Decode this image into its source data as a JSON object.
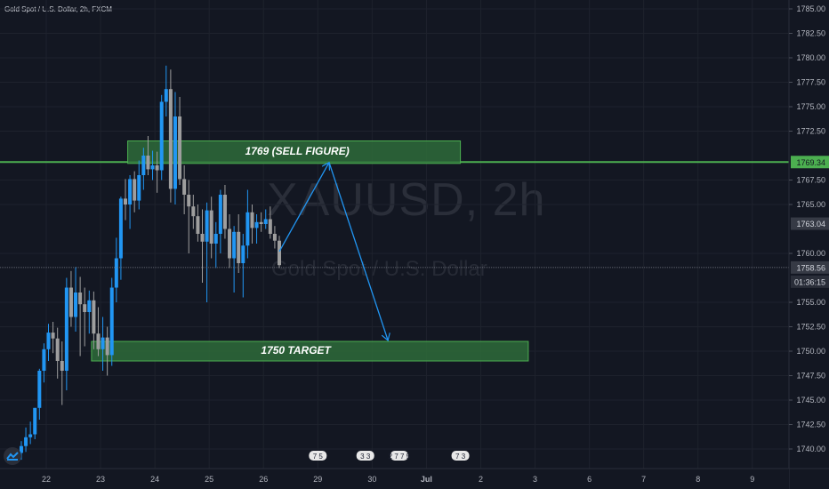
{
  "header": {
    "title": "Gold Spot / U.S. Dollar, 2h, FXCM"
  },
  "watermark": {
    "symbol": "XAUUSD, 2h",
    "description": "Gold Spot / U.S. Dollar"
  },
  "colors": {
    "background": "#131722",
    "up_candle": "#2196f3",
    "down_candle": "#9e9e9e",
    "zone_fill": "#2e6b3a",
    "zone_border": "#4caf50",
    "resistance_line": "#4caf50",
    "arrow": "#2196f3",
    "axis_text": "#b2b5be"
  },
  "chart_data": {
    "type": "candlestick",
    "title": "Gold Spot / U.S. Dollar, 2h, FXCM",
    "y_axis": {
      "position": "right",
      "ticks": [
        "1785.00",
        "1782.50",
        "1780.00",
        "1777.50",
        "1775.00",
        "1772.50",
        "1767.50",
        "1765.00",
        "1760.00",
        "1755.00",
        "1752.50",
        "1750.00",
        "1747.50",
        "1745.00",
        "1742.50",
        "1740.00"
      ],
      "price_labels": [
        {
          "value": 1769.34,
          "text": "1769.34"
        },
        {
          "value": 1763.04,
          "text": "1763.04"
        },
        {
          "value": 1758.56,
          "text": "1758.56"
        }
      ],
      "countdown": "01:36:15"
    },
    "x_axis": {
      "ticks": [
        "22",
        "23",
        "24",
        "25",
        "26",
        "29",
        "30",
        "Jul",
        "2",
        "3",
        "6",
        "7",
        "8",
        "9"
      ]
    },
    "current_price": 1758.56,
    "resistance_line": 1769.34,
    "zones": [
      {
        "label": "1769 (SELL FIGURE)",
        "top": 1771.5,
        "bottom": 1769.2,
        "from": "23 12:00",
        "to": "1 15:00"
      },
      {
        "label": "1750 TARGET",
        "top": 1751.0,
        "bottom": 1749.0,
        "from": "22 20:00",
        "to": "2 21:00"
      }
    ],
    "projection_path": [
      {
        "time": "26 07:00",
        "price": 1760.2
      },
      {
        "time": "29 05:00",
        "price": 1769.3
      },
      {
        "time": "30 07:00",
        "price": 1751.1
      }
    ],
    "event_markers": [
      {
        "time": "29",
        "text": "7 5"
      },
      {
        "time": "29 21:00",
        "text": "3 3"
      },
      {
        "time": "30 12:00",
        "text": "2 7 7 5"
      },
      {
        "time": "1 15:00",
        "text": "7 3"
      }
    ],
    "candles": [
      {
        "t": "21 12:00",
        "o": 1739.6,
        "h": 1740.8,
        "l": 1738.9,
        "c": 1740.3
      },
      {
        "t": "21 14:00",
        "o": 1740.3,
        "h": 1742.2,
        "l": 1739.7,
        "c": 1741.2
      },
      {
        "t": "21 16:00",
        "o": 1741.2,
        "h": 1742.8,
        "l": 1740.5,
        "c": 1741.5
      },
      {
        "t": "21 18:00",
        "o": 1741.5,
        "h": 1744.2,
        "l": 1741.0,
        "c": 1744.2
      },
      {
        "t": "21 20:00",
        "o": 1744.2,
        "h": 1748.2,
        "l": 1743.0,
        "c": 1748.0
      },
      {
        "t": "21 22:00",
        "o": 1748.0,
        "h": 1750.8,
        "l": 1746.8,
        "c": 1750.2
      },
      {
        "t": "22 00:00",
        "o": 1750.2,
        "h": 1752.8,
        "l": 1749.0,
        "c": 1751.9
      },
      {
        "t": "22 02:00",
        "o": 1751.9,
        "h": 1753.0,
        "l": 1749.8,
        "c": 1751.3
      },
      {
        "t": "22 04:00",
        "o": 1751.3,
        "h": 1752.4,
        "l": 1747.2,
        "c": 1749.0
      },
      {
        "t": "22 06:00",
        "o": 1749.0,
        "h": 1751.0,
        "l": 1744.5,
        "c": 1748.0
      },
      {
        "t": "22 08:00",
        "o": 1748.0,
        "h": 1757.5,
        "l": 1746.0,
        "c": 1756.5
      },
      {
        "t": "22 10:00",
        "o": 1756.5,
        "h": 1758.2,
        "l": 1752.5,
        "c": 1753.5
      },
      {
        "t": "22 12:00",
        "o": 1753.5,
        "h": 1758.6,
        "l": 1752.0,
        "c": 1756.0
      },
      {
        "t": "22 14:00",
        "o": 1756.0,
        "h": 1757.6,
        "l": 1749.5,
        "c": 1754.8
      },
      {
        "t": "22 16:00",
        "o": 1754.8,
        "h": 1756.5,
        "l": 1750.5,
        "c": 1754.0
      },
      {
        "t": "22 18:00",
        "o": 1754.0,
        "h": 1756.2,
        "l": 1751.8,
        "c": 1755.2
      },
      {
        "t": "22 20:00",
        "o": 1755.2,
        "h": 1756.1,
        "l": 1750.2,
        "c": 1751.8
      },
      {
        "t": "22 22:00",
        "o": 1751.8,
        "h": 1754.5,
        "l": 1749.5,
        "c": 1750.2
      },
      {
        "t": "23 00:00",
        "o": 1750.2,
        "h": 1753.5,
        "l": 1748.0,
        "c": 1751.4
      },
      {
        "t": "23 02:00",
        "o": 1751.4,
        "h": 1752.5,
        "l": 1747.5,
        "c": 1749.6
      },
      {
        "t": "23 04:00",
        "o": 1749.6,
        "h": 1757.5,
        "l": 1748.5,
        "c": 1756.5
      },
      {
        "t": "23 06:00",
        "o": 1756.5,
        "h": 1761.6,
        "l": 1755.0,
        "c": 1759.5
      },
      {
        "t": "23 08:00",
        "o": 1759.5,
        "h": 1765.8,
        "l": 1757.3,
        "c": 1765.6
      },
      {
        "t": "23 10:00",
        "o": 1765.6,
        "h": 1767.6,
        "l": 1763.4,
        "c": 1765.0
      },
      {
        "t": "23 12:00",
        "o": 1765.0,
        "h": 1768.0,
        "l": 1762.5,
        "c": 1767.6
      },
      {
        "t": "23 14:00",
        "o": 1767.6,
        "h": 1768.4,
        "l": 1764.2,
        "c": 1765.4
      },
      {
        "t": "23 16:00",
        "o": 1765.4,
        "h": 1769.5,
        "l": 1764.5,
        "c": 1768.0
      },
      {
        "t": "23 18:00",
        "o": 1768.0,
        "h": 1770.8,
        "l": 1766.5,
        "c": 1770.0
      },
      {
        "t": "23 20:00",
        "o": 1770.0,
        "h": 1772.0,
        "l": 1768.0,
        "c": 1768.6
      },
      {
        "t": "23 22:00",
        "o": 1768.6,
        "h": 1770.5,
        "l": 1767.5,
        "c": 1769.0
      },
      {
        "t": "24 00:00",
        "o": 1769.0,
        "h": 1770.4,
        "l": 1766.2,
        "c": 1768.5
      },
      {
        "t": "24 02:00",
        "o": 1768.5,
        "h": 1776.2,
        "l": 1767.5,
        "c": 1775.5
      },
      {
        "t": "24 04:00",
        "o": 1775.5,
        "h": 1779.2,
        "l": 1774.0,
        "c": 1776.8
      },
      {
        "t": "24 06:00",
        "o": 1776.8,
        "h": 1778.8,
        "l": 1765.2,
        "c": 1766.6
      },
      {
        "t": "24 08:00",
        "o": 1766.6,
        "h": 1776.5,
        "l": 1765.0,
        "c": 1774.0
      },
      {
        "t": "24 10:00",
        "o": 1774.0,
        "h": 1776.0,
        "l": 1767.0,
        "c": 1767.6
      },
      {
        "t": "24 12:00",
        "o": 1767.6,
        "h": 1769.0,
        "l": 1764.0,
        "c": 1766.0
      },
      {
        "t": "24 14:00",
        "o": 1766.0,
        "h": 1767.5,
        "l": 1760.0,
        "c": 1764.8
      },
      {
        "t": "24 16:00",
        "o": 1764.8,
        "h": 1766.0,
        "l": 1762.5,
        "c": 1763.8
      },
      {
        "t": "24 18:00",
        "o": 1763.8,
        "h": 1765.0,
        "l": 1761.2,
        "c": 1762.0
      },
      {
        "t": "24 20:00",
        "o": 1762.0,
        "h": 1764.5,
        "l": 1757.0,
        "c": 1761.2
      },
      {
        "t": "24 22:00",
        "o": 1761.2,
        "h": 1765.2,
        "l": 1755.0,
        "c": 1764.4
      },
      {
        "t": "25 00:00",
        "o": 1764.4,
        "h": 1765.8,
        "l": 1759.5,
        "c": 1761.0
      },
      {
        "t": "25 02:00",
        "o": 1761.0,
        "h": 1763.2,
        "l": 1758.5,
        "c": 1762.0
      },
      {
        "t": "25 04:00",
        "o": 1762.0,
        "h": 1766.5,
        "l": 1760.0,
        "c": 1766.0
      },
      {
        "t": "25 06:00",
        "o": 1766.0,
        "h": 1767.0,
        "l": 1761.5,
        "c": 1762.5
      },
      {
        "t": "25 08:00",
        "o": 1762.5,
        "h": 1764.0,
        "l": 1758.5,
        "c": 1759.5
      },
      {
        "t": "25 10:00",
        "o": 1759.5,
        "h": 1762.8,
        "l": 1756.0,
        "c": 1762.2
      },
      {
        "t": "25 12:00",
        "o": 1762.2,
        "h": 1764.0,
        "l": 1758.0,
        "c": 1759.0
      },
      {
        "t": "25 14:00",
        "o": 1759.0,
        "h": 1762.0,
        "l": 1755.5,
        "c": 1760.8
      },
      {
        "t": "25 16:00",
        "o": 1760.8,
        "h": 1766.5,
        "l": 1759.5,
        "c": 1764.2
      },
      {
        "t": "25 18:00",
        "o": 1764.2,
        "h": 1765.0,
        "l": 1761.0,
        "c": 1762.6
      },
      {
        "t": "25 20:00",
        "o": 1762.6,
        "h": 1764.0,
        "l": 1761.0,
        "c": 1763.2
      },
      {
        "t": "25 22:00",
        "o": 1763.2,
        "h": 1764.2,
        "l": 1762.2,
        "c": 1763.0
      },
      {
        "t": "26 00:00",
        "o": 1763.0,
        "h": 1764.5,
        "l": 1762.5,
        "c": 1763.5
      },
      {
        "t": "26 02:00",
        "o": 1763.5,
        "h": 1764.8,
        "l": 1761.5,
        "c": 1762.0
      },
      {
        "t": "26 04:00",
        "o": 1762.0,
        "h": 1762.8,
        "l": 1760.5,
        "c": 1761.3
      },
      {
        "t": "26 06:00",
        "o": 1761.3,
        "h": 1761.8,
        "l": 1758.5,
        "c": 1758.8
      }
    ]
  }
}
